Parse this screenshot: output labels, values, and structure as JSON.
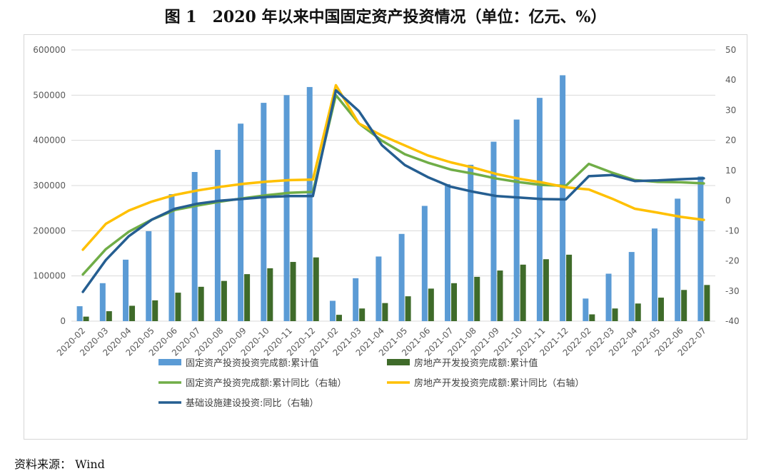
{
  "title": "图 1　2020 年以来中国固定资产投资情况（单位：亿元、%）",
  "source": "资料来源：  Wind",
  "chart_data": {
    "type": "bar+line",
    "categories": [
      "2020-02",
      "2020-03",
      "2020-04",
      "2020-05",
      "2020-06",
      "2020-07",
      "2020-08",
      "2020-09",
      "2020-10",
      "2020-11",
      "2020-12",
      "2021-02",
      "2021-03",
      "2021-04",
      "2021-05",
      "2021-06",
      "2021-07",
      "2021-08",
      "2021-09",
      "2021-10",
      "2021-11",
      "2021-12",
      "2022-02",
      "2022-03",
      "2022-04",
      "2022-05",
      "2022-06",
      "2022-07"
    ],
    "y_left": {
      "min": 0,
      "max": 600000,
      "ticks": [
        "0",
        "100000",
        "200000",
        "300000",
        "400000",
        "500000",
        "600000"
      ]
    },
    "y_right": {
      "min": -40,
      "max": 50,
      "ticks": [
        "-40",
        "-30",
        "-20",
        "-10",
        "0",
        "10",
        "20",
        "30",
        "40",
        "50"
      ]
    },
    "bars": [
      {
        "name": "固定资产投资投资完成额:累计值",
        "color": "#5b9bd5",
        "values": [
          33000,
          84000,
          136000,
          199000,
          281000,
          330000,
          379000,
          437000,
          483000,
          500000,
          518000,
          45000,
          95000,
          143000,
          193000,
          255000,
          303000,
          346000,
          397000,
          446000,
          494000,
          544000,
          50000,
          105000,
          153000,
          205000,
          271000,
          320000
        ]
      },
      {
        "name": "房地产开发投资完成额:累计值",
        "color": "#3f6b2a",
        "values": [
          10000,
          22000,
          34000,
          46000,
          63000,
          76000,
          89000,
          104000,
          117000,
          131000,
          141000,
          14000,
          28000,
          40000,
          55000,
          72000,
          84000,
          98000,
          112000,
          125000,
          137000,
          147000,
          15000,
          28000,
          39000,
          52000,
          69000,
          80000
        ]
      }
    ],
    "lines": [
      {
        "name": "固定资产投资完成额:累计同比（右轴）",
        "color": "#70ad47",
        "values": [
          -24.5,
          -16.1,
          -10.3,
          -6.3,
          -3.1,
          -1.6,
          -0.3,
          0.8,
          1.8,
          2.6,
          2.9,
          35.0,
          25.6,
          19.9,
          15.4,
          12.6,
          10.3,
          8.9,
          7.3,
          6.1,
          5.2,
          4.9,
          12.2,
          9.3,
          6.8,
          6.2,
          6.1,
          5.7
        ]
      },
      {
        "name": "房地产开发投资完成额:累计同比（右轴）",
        "color": "#ffc000",
        "values": [
          -16.3,
          -7.7,
          -3.3,
          -0.3,
          1.9,
          3.4,
          4.6,
          5.6,
          6.3,
          6.8,
          7.0,
          38.3,
          25.6,
          21.6,
          18.3,
          15.0,
          12.7,
          10.9,
          8.8,
          7.2,
          6.0,
          4.4,
          3.7,
          0.7,
          -2.7,
          -4.0,
          -5.4,
          -6.4
        ]
      },
      {
        "name": "基础设施建设投资:同比（右轴）",
        "color": "#255e91",
        "values": [
          -30.3,
          -19.7,
          -11.8,
          -6.3,
          -2.7,
          -1.0,
          0.0,
          0.6,
          1.2,
          1.5,
          1.5,
          36.6,
          29.7,
          18.4,
          11.8,
          7.8,
          4.6,
          2.9,
          1.5,
          1.0,
          0.5,
          0.4,
          8.1,
          8.5,
          6.5,
          6.7,
          7.1,
          7.4
        ]
      }
    ],
    "legend_position": "bottom",
    "grid": true
  }
}
